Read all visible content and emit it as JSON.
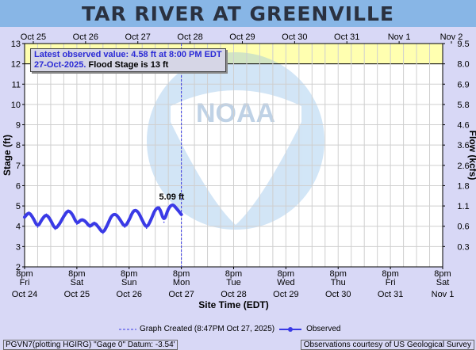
{
  "header": {
    "title": "TAR RIVER AT GREENVILLE"
  },
  "info": {
    "latest_line1": "Latest observed value: 4.58 ft at 8:00 PM EDT",
    "latest_line2_date": "27-Oct-2025.",
    "flood_stage_text": "Flood Stage is 13 ft"
  },
  "footer": {
    "graph_created_label": "Graph Created (8:47PM Oct 27, 2025)",
    "observed_label": "Observed",
    "datum_text": "PGVN7(plotting HGIRG) \"Gage 0\" Datum: -3.54'",
    "courtesy_text": "Observations courtesy of US Geological Survey"
  },
  "colors": {
    "observed": "#3a3ae6",
    "flood_band": "#ffffb0",
    "plot_bg": "#ffffff",
    "page_bg": "#d8d8f6",
    "grid": "#cfcfcf",
    "now_line": "#3a3ae6"
  },
  "chart_data": {
    "type": "line",
    "title": "TAR RIVER AT GREENVILLE",
    "xlabel": "Site Time (EDT)",
    "ylabel": "Stage (ft)",
    "y2label": "Flow (kcfs)",
    "ylim": [
      2,
      13
    ],
    "flood_stage": 13,
    "now_time": "2025-10-27T20:00",
    "top_tick_labels": [
      "Oct 25",
      "Oct 26",
      "Oct 27",
      "Oct 28",
      "Oct 29",
      "Oct 30",
      "Oct 31",
      "Nov  1",
      "Nov  2"
    ],
    "bottom_tick_labels": [
      [
        "8pm",
        "Fri",
        "Oct 24"
      ],
      [
        "8pm",
        "Sat",
        "Oct 25"
      ],
      [
        "8pm",
        "Sun",
        "Oct 26"
      ],
      [
        "8pm",
        "Mon",
        "Oct 27"
      ],
      [
        "8pm",
        "Tue",
        "Oct 28"
      ],
      [
        "8pm",
        "Wed",
        "Oct 29"
      ],
      [
        "8pm",
        "Thu",
        "Oct 30"
      ],
      [
        "8pm",
        "Fri",
        "Oct 31"
      ],
      [
        "8pm",
        "Sat",
        "Nov 1"
      ]
    ],
    "y_ticks": [
      2,
      3,
      4,
      5,
      6,
      7,
      8,
      9,
      10,
      11,
      12,
      13
    ],
    "y2_ticks": [
      {
        "stage": 3,
        "label": "0.3"
      },
      {
        "stage": 4,
        "label": "0.6"
      },
      {
        "stage": 5,
        "label": "1.1"
      },
      {
        "stage": 6,
        "label": "1.8"
      },
      {
        "stage": 7,
        "label": "2.6"
      },
      {
        "stage": 8,
        "label": "3.6"
      },
      {
        "stage": 9,
        "label": "4.6"
      },
      {
        "stage": 10,
        "label": "5.8"
      },
      {
        "stage": 11,
        "label": "6.9"
      },
      {
        "stage": 12,
        "label": "8.0"
      },
      {
        "stage": 13,
        "label": "9.5"
      }
    ],
    "peak_annotation": {
      "time_hours": 69,
      "value": 5.09,
      "label": "5.09 ft"
    },
    "series": [
      {
        "name": "Observed",
        "x_hours_from_start": [
          0,
          2,
          4,
          6,
          8,
          10,
          12,
          14,
          16,
          18,
          20,
          22,
          24,
          26,
          28,
          30,
          32,
          34,
          36,
          38,
          40,
          42,
          44,
          46,
          48,
          50,
          52,
          54,
          56,
          58,
          60,
          62,
          64,
          66,
          68,
          70,
          72
        ],
        "values": [
          4.45,
          4.7,
          4.4,
          3.95,
          4.35,
          4.6,
          4.3,
          3.85,
          4.1,
          4.5,
          4.8,
          4.6,
          4.1,
          4.35,
          4.25,
          3.95,
          4.2,
          3.95,
          3.65,
          4.05,
          4.55,
          4.6,
          4.3,
          3.95,
          4.3,
          4.8,
          4.75,
          4.3,
          3.9,
          4.3,
          4.85,
          4.95,
          4.2,
          4.9,
          5.09,
          4.85,
          4.58
        ]
      }
    ]
  }
}
